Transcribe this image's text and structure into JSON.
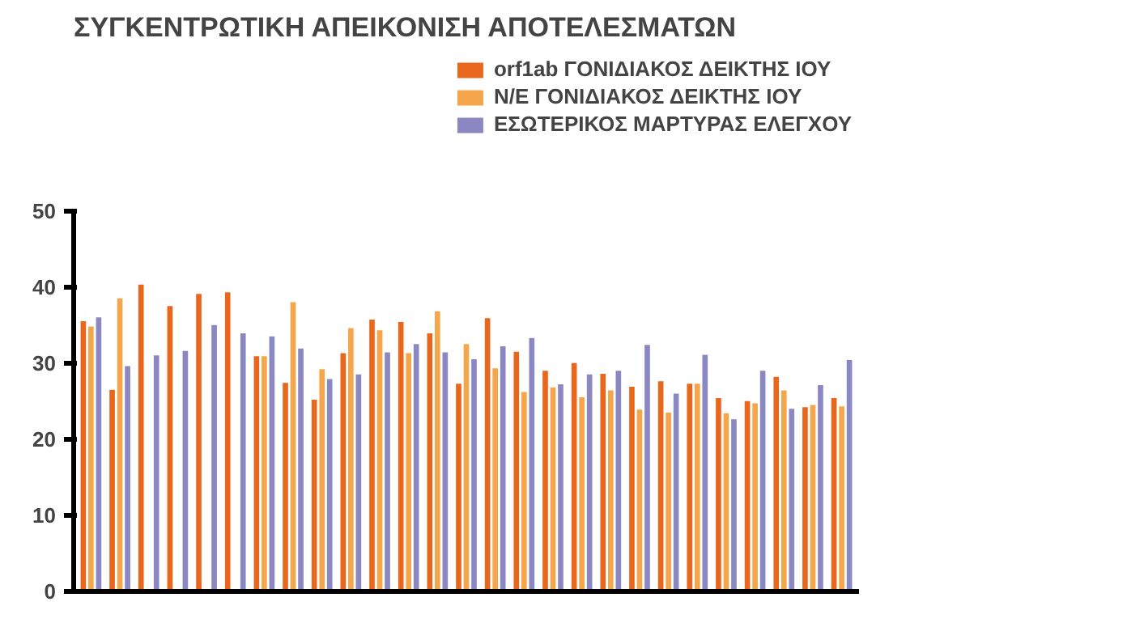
{
  "chart_data": {
    "type": "bar",
    "title": "ΣΥΓΚΕΝΤΡΩΤΙΚΗ ΑΠΕΙΚΟΝΙΣΗ ΑΠΟΤΕΛΕΣΜΑΤΩΝ",
    "categories": [
      null,
      null,
      null,
      null,
      null,
      null,
      null,
      null,
      null,
      null,
      null,
      null,
      null,
      null,
      null,
      null,
      null,
      null,
      null,
      null,
      null,
      null,
      null,
      null,
      null,
      null,
      null
    ],
    "series": [
      {
        "name": "orf1ab ΓΟΝΙΔΙΑΚΟΣ ΔΕΙΚΤΗΣ ΙΟΥ",
        "color": "#e8671c",
        "values": [
          35.5,
          26.5,
          40.3,
          37.5,
          39.1,
          39.3,
          30.9,
          27.4,
          25.2,
          31.3,
          35.7,
          35.4,
          33.9,
          27.3,
          35.9,
          31.5,
          29.0,
          30.0,
          28.6,
          26.9,
          27.6,
          27.3,
          25.4,
          25.0,
          28.2,
          24.2,
          25.4
        ]
      },
      {
        "name": "N/E ΓΟΝΙΔΙΑΚΟΣ ΔΕΙΚΤΗΣ ΙΟΥ",
        "color": "#f5a54a",
        "values": [
          34.8,
          38.5,
          null,
          null,
          null,
          null,
          30.9,
          38.0,
          29.2,
          34.6,
          34.3,
          31.3,
          36.8,
          32.5,
          29.3,
          26.2,
          26.8,
          25.5,
          26.4,
          23.9,
          23.5,
          27.3,
          23.4,
          24.7,
          26.4,
          24.5,
          24.3
        ]
      },
      {
        "name": "ΕΣΩΤΕΡΙΚΟΣ ΜΑΡΤΥΡΑΣ ΕΛΕΓΧΟΥ",
        "color": "#8b87c2",
        "values": [
          36.0,
          29.6,
          31.0,
          31.6,
          35.0,
          33.9,
          33.5,
          31.9,
          27.9,
          28.5,
          31.4,
          32.5,
          31.4,
          30.5,
          32.2,
          33.3,
          27.2,
          28.5,
          29.0,
          32.4,
          26.0,
          31.1,
          22.6,
          29.0,
          24.0,
          27.1,
          30.4
        ]
      }
    ],
    "ylim": [
      0,
      50
    ],
    "yticks": [
      0,
      10,
      20,
      30,
      40,
      50
    ],
    "grid": false,
    "legend": "top right",
    "tick_labels": "y"
  }
}
